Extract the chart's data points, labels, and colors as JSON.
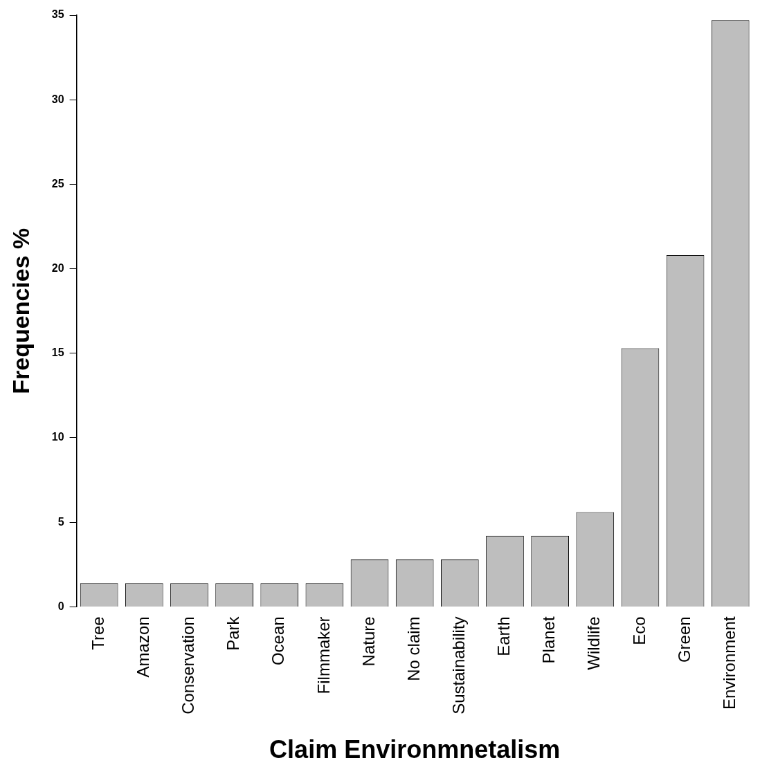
{
  "chart_data": {
    "type": "bar",
    "xlabel": "Claim Environmnetalism",
    "ylabel": "Frequencies %",
    "categories": [
      "Tree",
      "Amazon",
      "Conservation",
      "Park",
      "Ocean",
      "Filmmaker",
      "Nature",
      "No claim",
      "Sustainability",
      "Earth",
      "Planet",
      "Wildlife",
      "Eco",
      "Green",
      "Environment"
    ],
    "values": [
      1.4,
      1.4,
      1.4,
      1.4,
      1.4,
      1.4,
      2.8,
      2.8,
      2.8,
      4.2,
      4.2,
      5.6,
      15.3,
      20.8,
      34.7
    ],
    "color": "#bebebe",
    "ylim": [
      0,
      35
    ],
    "yticks": [
      0,
      5,
      10,
      15,
      20,
      25,
      30,
      35
    ]
  }
}
